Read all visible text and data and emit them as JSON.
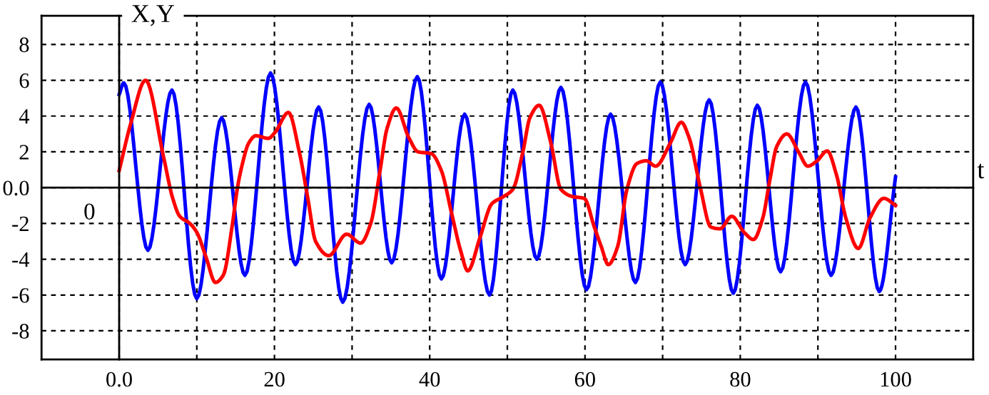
{
  "chart_data": {
    "type": "line",
    "xlabel": "t",
    "ylabel": "X,Y",
    "annotations": [
      "0"
    ],
    "xlim": [
      -10,
      110
    ],
    "ylim": [
      -9.6,
      9.6
    ],
    "xticks": [
      {
        "value": 0,
        "label": "0.0"
      },
      {
        "value": 10,
        "label": null
      },
      20,
      {
        "value": 30,
        "label": null
      },
      40,
      {
        "value": 50,
        "label": null
      },
      60,
      {
        "value": 70,
        "label": null
      },
      80,
      {
        "value": 90,
        "label": null
      },
      100
    ],
    "yticks": [
      -8,
      -6,
      -4,
      -2,
      {
        "value": 0,
        "label": "0.0"
      },
      2,
      4,
      6,
      8
    ],
    "grid": true,
    "marker": "none",
    "line_style": "solid",
    "series": [
      {
        "color": "#0000ff",
        "x": [
          0,
          0.6,
          3.7,
          6.8,
          10.0,
          13.2,
          16.2,
          19.5,
          22.7,
          25.7,
          28.8,
          32.2,
          35.1,
          38.4,
          41.5,
          44.5,
          47.7,
          50.7,
          53.8,
          56.9,
          60.2,
          63.3,
          66.5,
          69.7,
          72.9,
          76.0,
          79.1,
          82.2,
          85.2,
          88.4,
          91.7,
          94.9,
          97.9,
          100
        ],
        "values": [
          5.2,
          5.85,
          -3.5,
          5.45,
          -6.2,
          3.9,
          -4.9,
          6.4,
          -4.3,
          4.5,
          -6.4,
          4.65,
          -4.2,
          6.2,
          -5.1,
          4.1,
          -6.0,
          5.45,
          -4.0,
          5.6,
          -5.7,
          4.1,
          -5.3,
          5.9,
          -4.3,
          4.9,
          -5.9,
          4.6,
          -4.7,
          5.9,
          -4.9,
          4.5,
          -5.8,
          0.6
        ]
      },
      {
        "color": "#ff0000",
        "x": [
          0,
          1.5,
          3.4,
          5.7,
          6.9,
          7.8,
          9.1,
          10,
          11.2,
          12.4,
          13.4,
          14.6,
          15.2,
          15.8,
          16.7,
          17.6,
          19.2,
          20.1,
          21.8,
          23.2,
          24.3,
          25.3,
          27.0,
          29.3,
          31.1,
          32.4,
          33.6,
          34.5,
          35.7,
          37.3,
          38.5,
          40.2,
          41.5,
          42.8,
          44.0,
          44.9,
          46.5,
          48.0,
          49.5,
          50.7,
          52.0,
          52.9,
          54.1,
          55.6,
          56.9,
          58.4,
          59.9,
          61.2,
          62.1,
          63.0,
          64.2,
          65.4,
          66.7,
          67.9,
          69.1,
          71.0,
          72.4,
          73.4,
          74.9,
          76.2,
          77.4,
          78.9,
          80.5,
          81.7,
          82.9,
          83.8,
          84.7,
          86.0,
          87.5,
          88.7,
          89.9,
          91.2,
          92.4,
          93.6,
          95.2,
          96.7,
          98.5,
          100
        ],
        "values": [
          0.95,
          3.6,
          6.0,
          1.75,
          -0.6,
          -1.6,
          -2.0,
          -2.5,
          -3.9,
          -5.3,
          -4.9,
          -2.0,
          -0.1,
          1.2,
          2.5,
          2.9,
          2.75,
          3.1,
          4.2,
          2.0,
          -0.6,
          -3.0,
          -3.8,
          -2.6,
          -3.1,
          -2.0,
          0.95,
          3.3,
          4.45,
          2.8,
          2.0,
          1.9,
          0.95,
          -1.4,
          -3.55,
          -4.65,
          -2.75,
          -0.9,
          -0.5,
          -0.1,
          2.0,
          3.9,
          4.6,
          2.5,
          -0.1,
          -0.5,
          -0.6,
          -2.2,
          -3.3,
          -4.3,
          -3.3,
          -0.1,
          1.35,
          1.5,
          1.2,
          2.5,
          3.65,
          2.8,
          -0.1,
          -2.2,
          -2.3,
          -1.6,
          -2.5,
          -2.9,
          -1.7,
          0.4,
          2.3,
          3.0,
          2.0,
          1.2,
          1.5,
          2.05,
          0.7,
          -1.7,
          -3.4,
          -1.7,
          -0.6,
          -1.0
        ]
      }
    ]
  }
}
